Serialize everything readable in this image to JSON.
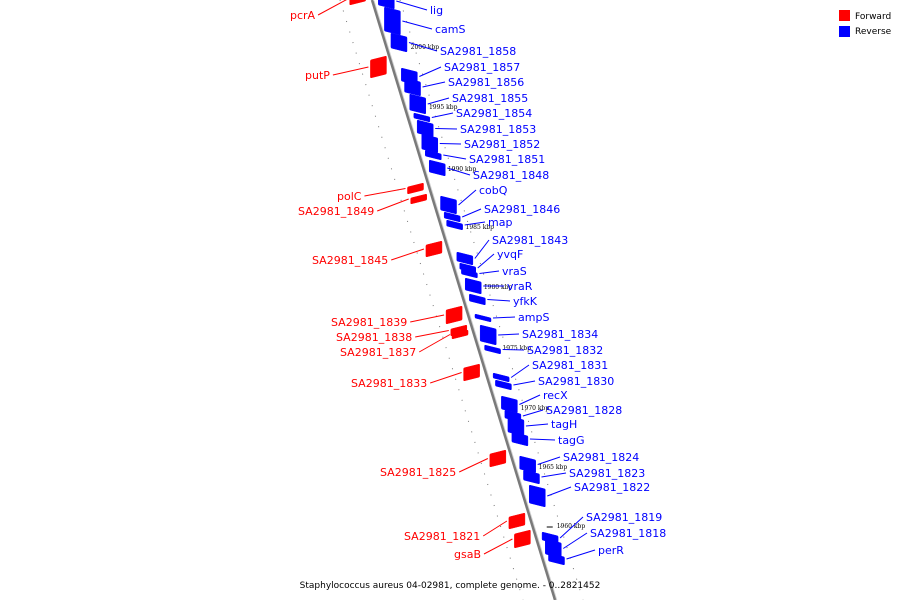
{
  "legend": {
    "forward_label": "Forward",
    "reverse_label": "Reverse",
    "forward_color": "#ff0000",
    "reverse_color": "#0000ff"
  },
  "caption": "Staphylococcus aureus 04-02981, complete genome. - 0..2821452",
  "ticks": [
    "2000 kbp",
    "1995 kbp",
    "1990 kbp",
    "1985 kbp",
    "1980 kbp",
    "1975 kbp",
    "1970 kbp",
    "1965 kbp",
    "1960 kbp"
  ],
  "forward_genes": [
    "pcrA",
    "putP",
    "polC",
    "SA2981_1849",
    "SA2981_1845",
    "SA2981_1839",
    "SA2981_1838",
    "SA2981_1837",
    "SA2981_1833",
    "SA2981_1825",
    "SA2981_1821",
    "gsaB"
  ],
  "reverse_genes": [
    "lig",
    "camS",
    "SA2981_1858",
    "SA2981_1857",
    "SA2981_1856",
    "SA2981_1855",
    "SA2981_1854",
    "SA2981_1853",
    "SA2981_1852",
    "SA2981_1851",
    "SA2981_1848",
    "cobQ",
    "SA2981_1846",
    "map",
    "SA2981_1843",
    "yvqF",
    "vraS",
    "vraR",
    "yfkK",
    "ampS",
    "SA2981_1834",
    "SA2981_1832",
    "SA2981_1831",
    "SA2981_1830",
    "recX",
    "SA2981_1828",
    "tagH",
    "tagG",
    "SA2981_1824",
    "SA2981_1823",
    "SA2981_1822",
    "SA2981_1819",
    "SA2981_1818",
    "perR"
  ]
}
